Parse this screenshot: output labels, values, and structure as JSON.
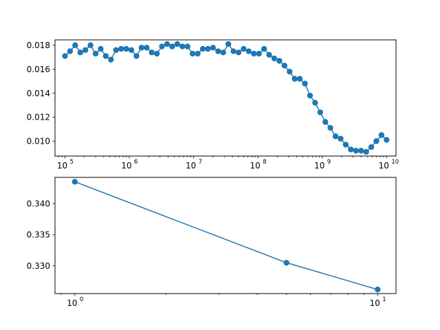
{
  "colors": {
    "series": "#1f77b4",
    "axis": "#000000",
    "background": "#ffffff"
  },
  "chart_data": [
    {
      "type": "line",
      "marker": "circle",
      "x_scale": "log",
      "title": "",
      "xlabel": "",
      "ylabel": "",
      "xlim": [
        70000.0,
        14000000000.0
      ],
      "ylim": [
        0.00875,
        0.01845
      ],
      "grid": false,
      "legend": "none",
      "x_ticks": [
        {
          "value": 100000.0,
          "base": "10",
          "exp": "5"
        },
        {
          "value": 1000000.0,
          "base": "10",
          "exp": "6"
        },
        {
          "value": 10000000.0,
          "base": "10",
          "exp": "7"
        },
        {
          "value": 100000000.0,
          "base": "10",
          "exp": "8"
        },
        {
          "value": 1000000000.0,
          "base": "10",
          "exp": "9"
        },
        {
          "value": 10000000000.0,
          "base": "10",
          "exp": "10"
        }
      ],
      "y_ticks": [
        {
          "value": 0.01,
          "label": "0.010"
        },
        {
          "value": 0.012,
          "label": "0.012"
        },
        {
          "value": 0.014,
          "label": "0.014"
        },
        {
          "value": 0.016,
          "label": "0.016"
        },
        {
          "value": 0.018,
          "label": "0.018"
        }
      ],
      "x_range": [
        100000.0,
        10000000000.0
      ],
      "y": [
        0.0171,
        0.0175,
        0.018,
        0.0174,
        0.0176,
        0.018,
        0.0173,
        0.0177,
        0.0171,
        0.0168,
        0.0176,
        0.0177,
        0.0177,
        0.0176,
        0.0171,
        0.0178,
        0.0178,
        0.0174,
        0.0173,
        0.0179,
        0.0181,
        0.0179,
        0.0181,
        0.0179,
        0.0179,
        0.0173,
        0.0173,
        0.0177,
        0.0177,
        0.0178,
        0.0175,
        0.0174,
        0.0181,
        0.0175,
        0.0174,
        0.0177,
        0.0175,
        0.0173,
        0.0173,
        0.0177,
        0.0172,
        0.0169,
        0.0167,
        0.0163,
        0.0158,
        0.0152,
        0.0152,
        0.0148,
        0.0138,
        0.0132,
        0.0124,
        0.0116,
        0.0111,
        0.0104,
        0.0102,
        0.0097,
        0.0093,
        0.0092,
        0.0092,
        0.0091,
        0.0095,
        0.01,
        0.0105,
        0.0101
      ]
    },
    {
      "type": "line",
      "marker": "circle",
      "x_scale": "log",
      "title": "",
      "xlabel": "",
      "ylabel": "",
      "xlim": [
        0.86,
        11.5
      ],
      "ylim": [
        0.32555,
        0.3442
      ],
      "grid": false,
      "legend": "none",
      "x_ticks": [
        {
          "value": 1,
          "base": "10",
          "exp": "0"
        },
        {
          "value": 10,
          "base": "10",
          "exp": "1"
        }
      ],
      "y_ticks": [
        {
          "value": 0.33,
          "label": "0.330"
        },
        {
          "value": 0.335,
          "label": "0.335"
        },
        {
          "value": 0.34,
          "label": "0.340"
        }
      ],
      "x": [
        1,
        5,
        10
      ],
      "y": [
        0.3435,
        0.3305,
        0.3262
      ]
    }
  ]
}
